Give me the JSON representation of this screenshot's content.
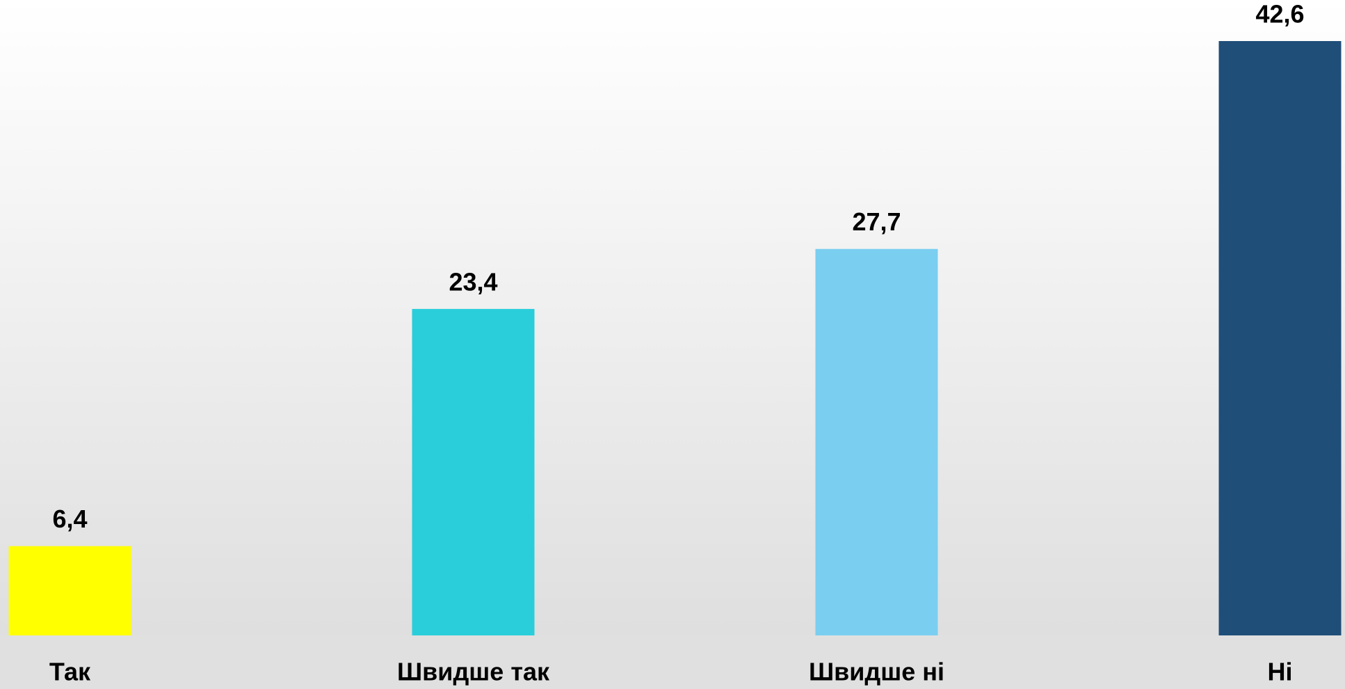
{
  "chart_data": {
    "type": "bar",
    "categories": [
      "Так",
      "Швидше так",
      "Швидше ні",
      "Ні"
    ],
    "values": [
      6.4,
      23.4,
      27.7,
      42.6
    ],
    "value_labels": [
      "6,4",
      "23,4",
      "27,7",
      "42,6"
    ],
    "colors": [
      "#ffff00",
      "#29ceda",
      "#7acef0",
      "#1f4e79"
    ]
  }
}
